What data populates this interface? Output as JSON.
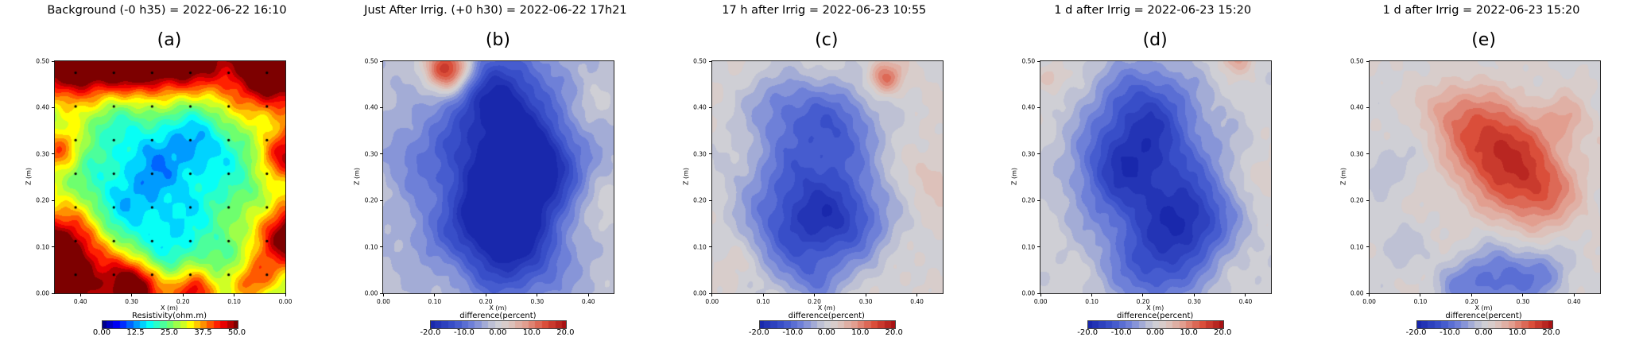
{
  "figure": {
    "background": "#ffffff"
  },
  "colormaps": {
    "jet": {
      "stops": [
        [
          0.0,
          0,
          0,
          140
        ],
        [
          0.11,
          0,
          0,
          255
        ],
        [
          0.34,
          0,
          255,
          255
        ],
        [
          0.5,
          110,
          255,
          110
        ],
        [
          0.65,
          255,
          255,
          0
        ],
        [
          0.88,
          255,
          0,
          0
        ],
        [
          1.0,
          125,
          0,
          0
        ]
      ]
    },
    "rdbu": {
      "stops": [
        [
          0.0,
          25,
          40,
          172
        ],
        [
          0.18,
          62,
          85,
          205
        ],
        [
          0.32,
          118,
          135,
          218
        ],
        [
          0.44,
          186,
          190,
          212
        ],
        [
          0.5,
          207,
          207,
          213
        ],
        [
          0.57,
          220,
          204,
          199
        ],
        [
          0.7,
          226,
          158,
          143
        ],
        [
          0.85,
          218,
          78,
          58
        ],
        [
          1.0,
          168,
          18,
          20
        ]
      ]
    }
  },
  "chart_data": [
    {
      "type": "heatmap",
      "label": "(a)",
      "title": "Background (-0 h35) = 2022-06-22 16:10",
      "xlabel": "X (m)",
      "ylabel": "Z (m)",
      "y_ticks": [
        {
          "label": "0.50",
          "pos": 0.0
        },
        {
          "label": "0.40",
          "pos": 0.2
        },
        {
          "label": "0.30",
          "pos": 0.4
        },
        {
          "label": "0.20",
          "pos": 0.6
        },
        {
          "label": "0.10",
          "pos": 0.8
        },
        {
          "label": "0.00",
          "pos": 1.0
        }
      ],
      "x_ticks": [
        {
          "label": "0.40",
          "pos": 0.111
        },
        {
          "label": "0.30",
          "pos": 0.333
        },
        {
          "label": "0.20",
          "pos": 0.556
        },
        {
          "label": "0.10",
          "pos": 0.778
        },
        {
          "label": "0.00",
          "pos": 1.0
        }
      ],
      "colorbar": {
        "label": "Resistivity(ohm.m)",
        "ticks": [
          "0.00",
          "12.5",
          "25.0",
          "37.5",
          "50.0"
        ]
      },
      "colormap": "jet",
      "range": [
        0,
        50
      ],
      "levels_step": 2.5,
      "base": 24,
      "noise": 2.2,
      "blobs": [
        [
          0.08,
          1.02,
          0.18,
          40
        ],
        [
          0.35,
          1.0,
          0.15,
          24
        ],
        [
          0.55,
          1.05,
          0.2,
          30
        ],
        [
          0.95,
          1.0,
          0.22,
          38
        ],
        [
          1.02,
          0.6,
          0.12,
          22
        ],
        [
          1.02,
          0.25,
          0.15,
          30
        ],
        [
          0.02,
          0.62,
          0.1,
          16
        ],
        [
          -0.02,
          0.1,
          0.25,
          42
        ],
        [
          0.35,
          0.02,
          0.12,
          28
        ],
        [
          0.6,
          0.0,
          0.1,
          22
        ],
        [
          0.85,
          0.05,
          0.1,
          15
        ],
        [
          0.45,
          0.55,
          0.28,
          -9
        ],
        [
          0.3,
          0.35,
          0.18,
          -6
        ],
        [
          0.62,
          0.65,
          0.15,
          -6
        ],
        [
          0.5,
          0.2,
          0.14,
          -5
        ]
      ],
      "electrode_dots": {
        "cols": 6,
        "rows": 7
      }
    },
    {
      "type": "heatmap",
      "label": "(b)",
      "title": "Just After Irrig. (+0 h30) = 2022-06-22 17h21",
      "xlabel": "X (m)",
      "ylabel": "Z (m)",
      "y_ticks": [
        {
          "label": "0.50",
          "pos": 0.0
        },
        {
          "label": "0.40",
          "pos": 0.2
        },
        {
          "label": "0.30",
          "pos": 0.4
        },
        {
          "label": "0.20",
          "pos": 0.6
        },
        {
          "label": "0.10",
          "pos": 0.8
        },
        {
          "label": "0.00",
          "pos": 1.0
        }
      ],
      "x_ticks": [
        {
          "label": "0.00",
          "pos": 0.0
        },
        {
          "label": "0.10",
          "pos": 0.222
        },
        {
          "label": "0.20",
          "pos": 0.444
        },
        {
          "label": "0.30",
          "pos": 0.667
        },
        {
          "label": "0.40",
          "pos": 0.889
        }
      ],
      "colorbar": {
        "label": "difference(percent)",
        "ticks": [
          "-20.0",
          "-10.0",
          "0.00",
          "10.0",
          "20.0"
        ]
      },
      "colormap": "rdbu",
      "range": [
        -25,
        25
      ],
      "levels_step": 2.5,
      "base": -3,
      "noise": 1.3,
      "blobs": [
        [
          0.52,
          0.5,
          0.28,
          -20
        ],
        [
          0.5,
          0.85,
          0.22,
          -18
        ],
        [
          0.55,
          0.18,
          0.22,
          -17
        ],
        [
          0.68,
          0.55,
          0.18,
          -12
        ],
        [
          0.45,
          0.35,
          0.15,
          -10
        ],
        [
          0.28,
          0.97,
          0.1,
          28
        ],
        [
          0.15,
          0.6,
          0.15,
          -5
        ],
        [
          0.2,
          0.25,
          0.12,
          -4
        ],
        [
          0.95,
          0.35,
          0.15,
          5
        ],
        [
          0.9,
          0.8,
          0.1,
          3
        ]
      ],
      "electrode_dots": null
    },
    {
      "type": "heatmap",
      "label": "(c)",
      "title": "17 h after Irrig = 2022-06-23 10:55",
      "xlabel": "X (m)",
      "ylabel": "Z (m)",
      "y_ticks": [
        {
          "label": "0.50",
          "pos": 0.0
        },
        {
          "label": "0.40",
          "pos": 0.2
        },
        {
          "label": "0.30",
          "pos": 0.4
        },
        {
          "label": "0.20",
          "pos": 0.6
        },
        {
          "label": "0.10",
          "pos": 0.8
        },
        {
          "label": "0.00",
          "pos": 1.0
        }
      ],
      "x_ticks": [
        {
          "label": "0.00",
          "pos": 0.0
        },
        {
          "label": "0.10",
          "pos": 0.222
        },
        {
          "label": "0.20",
          "pos": 0.444
        },
        {
          "label": "0.30",
          "pos": 0.667
        },
        {
          "label": "0.40",
          "pos": 0.889
        }
      ],
      "colorbar": {
        "label": "difference(percent)",
        "ticks": [
          "-20.0",
          "-10.0",
          "0.00",
          "10.0",
          "20.0"
        ]
      },
      "colormap": "rdbu",
      "range": [
        -25,
        25
      ],
      "levels_step": 2.5,
      "base": 1.5,
      "noise": 1.3,
      "blobs": [
        [
          0.42,
          0.5,
          0.28,
          -15
        ],
        [
          0.35,
          0.25,
          0.2,
          -12
        ],
        [
          0.55,
          0.75,
          0.18,
          -10
        ],
        [
          0.6,
          0.3,
          0.18,
          -12
        ],
        [
          0.3,
          0.82,
          0.15,
          -8
        ],
        [
          0.45,
          0.05,
          0.12,
          -8
        ],
        [
          0.75,
          0.93,
          0.07,
          14
        ],
        [
          0.95,
          0.5,
          0.12,
          4
        ],
        [
          0.1,
          0.15,
          0.1,
          3
        ]
      ],
      "electrode_dots": null
    },
    {
      "type": "heatmap",
      "label": "(d)",
      "title": "1 d after Irrig = 2022-06-23 15:20",
      "xlabel": "X (m)",
      "ylabel": "Z (m)",
      "y_ticks": [
        {
          "label": "0.50",
          "pos": 0.0
        },
        {
          "label": "0.40",
          "pos": 0.2
        },
        {
          "label": "0.30",
          "pos": 0.4
        },
        {
          "label": "0.20",
          "pos": 0.6
        },
        {
          "label": "0.10",
          "pos": 0.8
        },
        {
          "label": "0.00",
          "pos": 1.0
        }
      ],
      "x_ticks": [
        {
          "label": "0.00",
          "pos": 0.0
        },
        {
          "label": "0.10",
          "pos": 0.222
        },
        {
          "label": "0.20",
          "pos": 0.444
        },
        {
          "label": "0.30",
          "pos": 0.667
        },
        {
          "label": "0.40",
          "pos": 0.889
        }
      ],
      "colorbar": {
        "label": "difference(percent)",
        "ticks": [
          "-20.0",
          "-10.0",
          "0.00",
          "10.0",
          "20.0"
        ]
      },
      "colormap": "rdbu",
      "range": [
        -25,
        25
      ],
      "levels_step": 2.5,
      "base": 0.5,
      "noise": 1.3,
      "blobs": [
        [
          0.5,
          0.45,
          0.3,
          -18
        ],
        [
          0.45,
          0.8,
          0.22,
          -15
        ],
        [
          0.5,
          0.1,
          0.2,
          -13
        ],
        [
          0.68,
          0.3,
          0.16,
          -11
        ],
        [
          0.3,
          0.55,
          0.18,
          -8
        ],
        [
          0.85,
          1.02,
          0.07,
          9
        ],
        [
          0.04,
          0.93,
          0.06,
          6
        ],
        [
          0.97,
          0.5,
          0.1,
          5
        ]
      ],
      "electrode_dots": null
    },
    {
      "type": "heatmap",
      "label": "(e)",
      "title": "1 d after Irrig = 2022-06-23 15:20",
      "xlabel": "X (m)",
      "ylabel": "Z (m)",
      "y_ticks": [
        {
          "label": "0.50",
          "pos": 0.0
        },
        {
          "label": "0.40",
          "pos": 0.2
        },
        {
          "label": "0.30",
          "pos": 0.4
        },
        {
          "label": "0.20",
          "pos": 0.6
        },
        {
          "label": "0.10",
          "pos": 0.8
        },
        {
          "label": "0.00",
          "pos": 1.0
        }
      ],
      "x_ticks": [
        {
          "label": "0.00",
          "pos": 0.0
        },
        {
          "label": "0.10",
          "pos": 0.222
        },
        {
          "label": "0.20",
          "pos": 0.444
        },
        {
          "label": "0.30",
          "pos": 0.667
        },
        {
          "label": "0.40",
          "pos": 0.889
        }
      ],
      "colorbar": {
        "label": "difference(percent)",
        "ticks": [
          "-20.0",
          "-10.0",
          "0.00",
          "10.0",
          "20.0"
        ]
      },
      "colormap": "rdbu",
      "range": [
        -25,
        25
      ],
      "levels_step": 2.5,
      "base": 1,
      "noise": 1.3,
      "blobs": [
        [
          0.62,
          0.55,
          0.22,
          15
        ],
        [
          0.5,
          0.68,
          0.18,
          11
        ],
        [
          0.75,
          0.42,
          0.15,
          9
        ],
        [
          0.35,
          0.8,
          0.12,
          7
        ],
        [
          0.85,
          0.75,
          0.1,
          6
        ],
        [
          0.55,
          0.06,
          0.15,
          -13
        ],
        [
          0.75,
          0.08,
          0.12,
          -9
        ],
        [
          0.38,
          0.03,
          0.1,
          -7
        ],
        [
          0.08,
          0.55,
          0.12,
          -4
        ],
        [
          0.12,
          0.2,
          0.1,
          -4
        ]
      ],
      "electrode_dots": null
    }
  ]
}
